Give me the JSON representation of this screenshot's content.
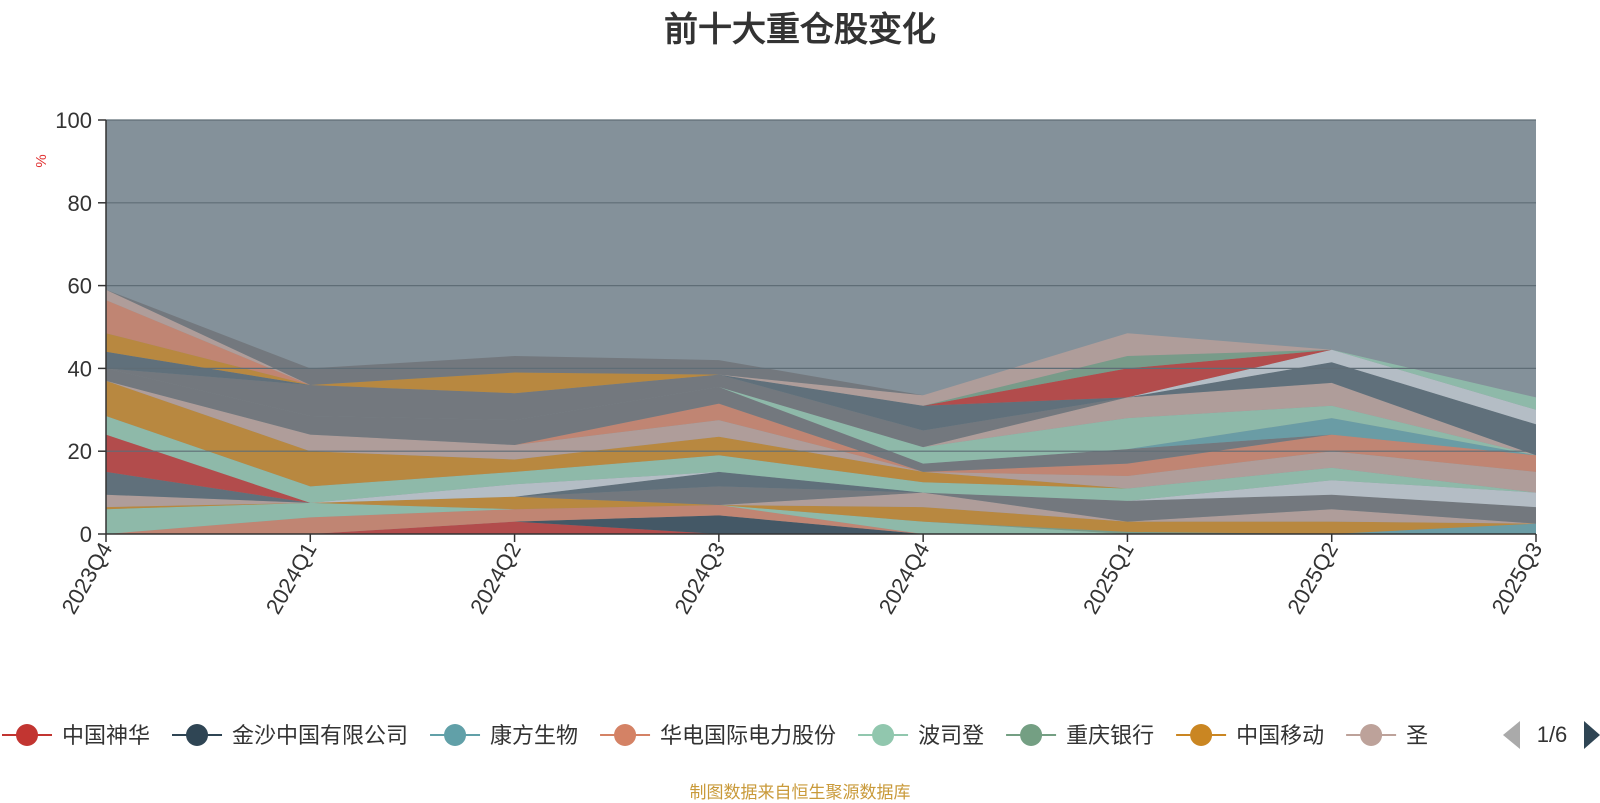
{
  "chart_data": {
    "type": "area",
    "title": "前十大重仓股变化",
    "ylabel": "%",
    "ylim": [
      0,
      100
    ],
    "yticks": [
      0,
      20,
      40,
      60,
      80,
      100
    ],
    "x": [
      "2023Q4",
      "2024Q1",
      "2024Q2",
      "2024Q3",
      "2024Q4",
      "2025Q1",
      "2025Q2",
      "2025Q3"
    ],
    "grid": true,
    "background_color": "#84919a",
    "series": [
      {
        "name": "中国神华",
        "color": "#c23531",
        "values": [
          0,
          0,
          3,
          0,
          0,
          0,
          0,
          0
        ]
      },
      {
        "name": "金沙中国有限公司",
        "color": "#2f4554",
        "values": [
          0,
          0,
          0,
          4.5,
          0,
          0,
          0,
          0
        ]
      },
      {
        "name": "康方生物",
        "color": "#61a0a8",
        "values": [
          0,
          0,
          0,
          0,
          0,
          0,
          0,
          2.5
        ]
      },
      {
        "name": "华电国际电力股份",
        "color": "#d48265",
        "values": [
          0,
          4,
          3,
          2.5,
          0,
          0,
          0,
          0
        ]
      },
      {
        "name": "波司登",
        "color": "#91c7ae",
        "values": [
          6,
          3.5,
          0,
          0,
          3,
          0,
          0,
          0
        ]
      },
      {
        "name": "重庆银行",
        "color": "#749f83",
        "values": [
          0,
          0,
          0,
          0,
          0,
          0.5,
          0,
          0
        ]
      },
      {
        "name": "中国移动",
        "color": "#ca8622",
        "values": [
          0.5,
          0,
          3,
          0,
          3.5,
          2.5,
          3,
          0
        ]
      },
      {
        "name": "",
        "color": "#bda29a",
        "values": [
          3,
          0,
          0,
          0,
          3.5,
          0,
          3,
          0
        ]
      },
      {
        "name": "",
        "color": "#6e7074",
        "values": [
          0,
          0,
          0,
          4.5,
          0,
          5,
          3.5,
          4
        ]
      },
      {
        "name": "",
        "color": "#546570",
        "values": [
          5.5,
          0,
          0,
          3.5,
          0,
          0,
          0,
          0
        ]
      },
      {
        "name": "",
        "color": "#c4ccd3",
        "values": [
          0,
          0,
          3,
          0,
          0,
          0,
          3.5,
          3.5
        ]
      },
      {
        "name": "",
        "color": "#c23531",
        "values": [
          9,
          0,
          0,
          0,
          0,
          0,
          0,
          0
        ]
      },
      {
        "name": "",
        "color": "#91c7ae",
        "values": [
          4.5,
          4,
          3,
          4,
          2.5,
          3,
          3,
          0
        ]
      },
      {
        "name": "",
        "color": "#ca8622",
        "values": [
          8.5,
          8.5,
          3,
          4.5,
          2.5,
          0,
          0,
          0
        ]
      },
      {
        "name": "",
        "color": "#bda29a",
        "values": [
          0,
          4,
          3.5,
          4,
          0,
          3,
          4,
          5
        ]
      },
      {
        "name": "",
        "color": "#d48265",
        "values": [
          0,
          0,
          0,
          4,
          0,
          3,
          4,
          4
        ]
      },
      {
        "name": "",
        "color": "#6e7074",
        "values": [
          3,
          4.5,
          6,
          4,
          2,
          3.5,
          0,
          0
        ]
      },
      {
        "name": "",
        "color": "#61a0a8",
        "values": [
          0,
          0,
          0,
          0,
          0,
          0,
          4,
          0
        ]
      },
      {
        "name": "",
        "color": "#91c7ae",
        "values": [
          0,
          0,
          0,
          0,
          4,
          7.5,
          3,
          0
        ]
      },
      {
        "name": "",
        "color": "#bda29a",
        "values": [
          0,
          0,
          0,
          0,
          0,
          5,
          5.5,
          0
        ]
      },
      {
        "name": "",
        "color": "#6e7074",
        "values": [
          0,
          7.5,
          6.5,
          3,
          4,
          0,
          0,
          0
        ]
      },
      {
        "name": "",
        "color": "#546570",
        "values": [
          4,
          0,
          0,
          0,
          6,
          0,
          5,
          7.5
        ]
      },
      {
        "name": "",
        "color": "#c4ccd3",
        "values": [
          0,
          0,
          0,
          0,
          0,
          0,
          3,
          3.5
        ]
      },
      {
        "name": "",
        "color": "#c23531",
        "values": [
          0,
          0,
          0,
          0,
          0,
          7,
          0,
          0
        ]
      },
      {
        "name": "",
        "color": "#749f83",
        "values": [
          0,
          0,
          0,
          0,
          0,
          3,
          0,
          0
        ]
      },
      {
        "name": "",
        "color": "#91c7ae",
        "values": [
          0,
          0,
          0,
          0,
          0,
          0,
          0,
          3
        ]
      },
      {
        "name": "",
        "color": "#ca8622",
        "values": [
          4.5,
          0,
          5,
          0,
          0,
          0,
          0,
          0
        ]
      },
      {
        "name": "",
        "color": "#d48265",
        "values": [
          8,
          0,
          0,
          0,
          0,
          0,
          0,
          0
        ]
      },
      {
        "name": "",
        "color": "#bda29a",
        "values": [
          2.5,
          0,
          0,
          0,
          2.5,
          5.5,
          0,
          0
        ]
      },
      {
        "name": "",
        "color": "#6e7074",
        "values": [
          0,
          4,
          4,
          3.5,
          0,
          0,
          0,
          0
        ]
      }
    ]
  },
  "legend": {
    "items": [
      {
        "label": "中国神华",
        "color": "#c23531"
      },
      {
        "label": "金沙中国有限公司",
        "color": "#2f4554"
      },
      {
        "label": "康方生物",
        "color": "#61a0a8"
      },
      {
        "label": "华电国际电力股份",
        "color": "#d48265"
      },
      {
        "label": "波司登",
        "color": "#91c7ae"
      },
      {
        "label": "重庆银行",
        "color": "#749f83"
      },
      {
        "label": "中国移动",
        "color": "#ca8622"
      },
      {
        "label": "圣",
        "color": "#bda29a"
      }
    ],
    "page_label": "1/6"
  },
  "footer": {
    "source": "制图数据来自恒生聚源数据库"
  }
}
